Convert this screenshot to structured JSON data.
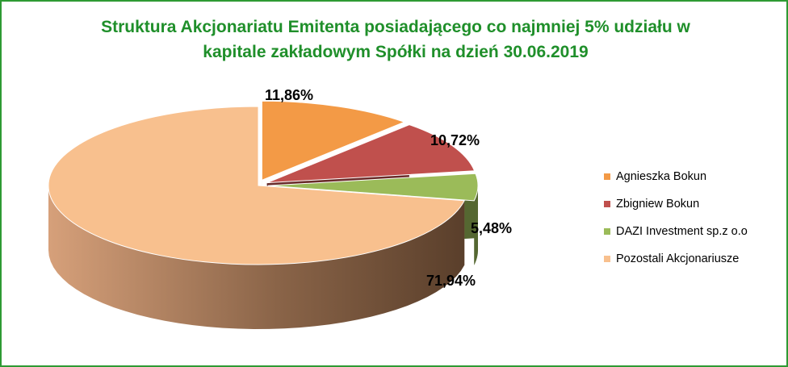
{
  "chart_data": {
    "type": "pie",
    "title": "Struktura Akcjonariatu  Emitenta posiadającego co najmniej  5% udziału w\nkapitale zakładowym Spółki na dzień 30.06.2019",
    "categories": [
      "Agnieszka Bokun",
      "Zbigniew Bokun",
      "DAZI Investment sp.z o.o",
      "Pozostali Akcjonariusze"
    ],
    "values": [
      11.86,
      10.72,
      5.48,
      71.94
    ],
    "data_labels": [
      "11,86%",
      "10,72%",
      "5,48%",
      "71,94%"
    ],
    "colors": [
      "#f39a46",
      "#c0504d",
      "#9bbb59",
      "#f8c08e"
    ],
    "legend_position": "right",
    "style": "3d-exploded"
  },
  "frame_color": "#2e9a33",
  "title_color": "#1f8f2a"
}
